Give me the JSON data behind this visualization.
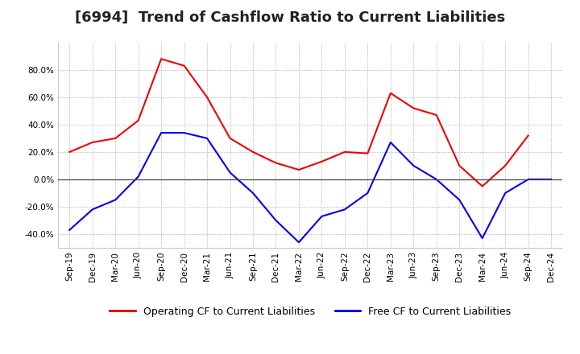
{
  "title": "[6994]  Trend of Cashflow Ratio to Current Liabilities",
  "x_labels": [
    "Sep-19",
    "Dec-19",
    "Mar-20",
    "Jun-20",
    "Sep-20",
    "Dec-20",
    "Mar-21",
    "Jun-21",
    "Sep-21",
    "Dec-21",
    "Mar-22",
    "Jun-22",
    "Sep-22",
    "Dec-22",
    "Mar-23",
    "Jun-23",
    "Sep-23",
    "Dec-23",
    "Mar-24",
    "Jun-24",
    "Sep-24",
    "Dec-24"
  ],
  "operating_cf": [
    20.0,
    27.0,
    30.0,
    43.0,
    88.0,
    83.0,
    60.0,
    30.0,
    20.0,
    12.0,
    7.0,
    13.0,
    20.0,
    19.0,
    63.0,
    52.0,
    47.0,
    10.0,
    -5.0,
    10.0,
    32.0,
    null
  ],
  "free_cf": [
    -37.0,
    -22.0,
    -15.0,
    2.0,
    34.0,
    34.0,
    30.0,
    5.0,
    -10.0,
    -30.0,
    -46.0,
    -27.0,
    -22.0,
    -10.0,
    27.0,
    10.0,
    0.0,
    -15.0,
    -43.0,
    -10.0,
    0.0,
    0.0
  ],
  "operating_color": "#ee0000",
  "free_color": "#0000ee",
  "ylim": [
    -50,
    100
  ],
  "yticks": [
    -40.0,
    -20.0,
    0.0,
    20.0,
    40.0,
    60.0,
    80.0
  ],
  "grid_color": "#999999",
  "background_color": "#ffffff",
  "plot_bg_color": "#e8e8e8",
  "legend_op": "Operating CF to Current Liabilities",
  "legend_free": "Free CF to Current Liabilities",
  "title_fontsize": 13,
  "tick_fontsize": 7.5,
  "legend_fontsize": 9
}
